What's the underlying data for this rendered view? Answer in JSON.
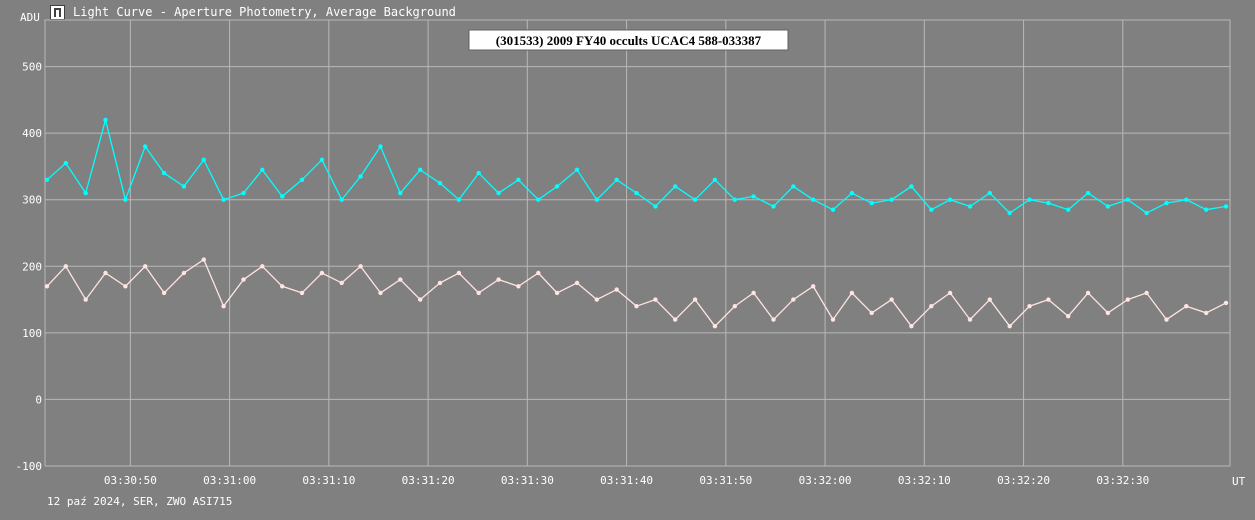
{
  "window": {
    "title": "Light Curve - Aperture Photometry, Average Background",
    "icon": "light-curve-app-icon"
  },
  "footer": {
    "text": "12 paź 2024, SER, ZWO ASI715"
  },
  "colors": {
    "background": "#808080",
    "grid": "#b8b8b8",
    "target": "#00ffff",
    "background_series": "#ffe4e1",
    "text": "#ffffff"
  },
  "chart_data": {
    "type": "line",
    "title": "(301533) 2009 FY40 occults UCAC4 588-033387",
    "ylabel": "ADU",
    "xlabel": "UT",
    "ylim": [
      -100,
      570
    ],
    "xlim": [
      "03:30:41.4",
      "03:32:40.8"
    ],
    "y_ticks": [
      -100,
      0,
      100,
      200,
      300,
      400,
      500
    ],
    "x_ticks": [
      "03:30:50",
      "03:31:00",
      "03:31:10",
      "03:31:20",
      "03:31:30",
      "03:31:40",
      "03:31:50",
      "03:32:00",
      "03:32:10",
      "03:32:20",
      "03:32:30"
    ],
    "grid": true,
    "legend": "none",
    "series": [
      {
        "color": "#00ffff",
        "x": [
          "03:30:41.6",
          "03:30:43.5",
          "03:30:45.5",
          "03:30:47.5",
          "03:30:49.5",
          "03:30:51.5",
          "03:30:53.4",
          "03:30:55.4",
          "03:30:57.4",
          "03:30:59.4",
          "03:31:01.4",
          "03:31:03.3",
          "03:31:05.3",
          "03:31:07.3",
          "03:31:09.3",
          "03:31:11.3",
          "03:31:13.2",
          "03:31:15.2",
          "03:31:17.2",
          "03:31:19.2",
          "03:31:21.2",
          "03:31:23.1",
          "03:31:25.1",
          "03:31:27.1",
          "03:31:29.1",
          "03:31:31.1",
          "03:31:33.0",
          "03:31:35.0",
          "03:31:37.0",
          "03:31:39.0",
          "03:31:41.0",
          "03:31:42.9",
          "03:31:44.9",
          "03:31:46.9",
          "03:31:48.9",
          "03:31:50.9",
          "03:31:52.8",
          "03:31:54.8",
          "03:31:56.8",
          "03:31:58.8",
          "03:32:00.8",
          "03:32:02.7",
          "03:32:04.7",
          "03:32:06.7",
          "03:32:08.7",
          "03:32:10.7",
          "03:32:12.6",
          "03:32:14.6",
          "03:32:16.6",
          "03:32:18.6",
          "03:32:20.6",
          "03:32:22.5",
          "03:32:24.5",
          "03:32:26.5",
          "03:32:28.5",
          "03:32:30.5",
          "03:32:32.4",
          "03:32:34.4",
          "03:32:36.4",
          "03:32:38.4",
          "03:32:40.4"
        ],
        "values": [
          330,
          355,
          310,
          420,
          300,
          380,
          340,
          320,
          360,
          300,
          310,
          345,
          305,
          330,
          360,
          300,
          335,
          380,
          310,
          345,
          325,
          300,
          340,
          310,
          330,
          300,
          320,
          345,
          300,
          330,
          310,
          290,
          320,
          300,
          330,
          300,
          305,
          290,
          320,
          300,
          285,
          310,
          295,
          300,
          320,
          285,
          300,
          290,
          310,
          280,
          300,
          295,
          285,
          310,
          290,
          300,
          280,
          295,
          300,
          285,
          290
        ]
      },
      {
        "color": "#ffe4e1",
        "x": [
          "03:30:41.6",
          "03:30:43.5",
          "03:30:45.5",
          "03:30:47.5",
          "03:30:49.5",
          "03:30:51.5",
          "03:30:53.4",
          "03:30:55.4",
          "03:30:57.4",
          "03:30:59.4",
          "03:31:01.4",
          "03:31:03.3",
          "03:31:05.3",
          "03:31:07.3",
          "03:31:09.3",
          "03:31:11.3",
          "03:31:13.2",
          "03:31:15.2",
          "03:31:17.2",
          "03:31:19.2",
          "03:31:21.2",
          "03:31:23.1",
          "03:31:25.1",
          "03:31:27.1",
          "03:31:29.1",
          "03:31:31.1",
          "03:31:33.0",
          "03:31:35.0",
          "03:31:37.0",
          "03:31:39.0",
          "03:31:41.0",
          "03:31:42.9",
          "03:31:44.9",
          "03:31:46.9",
          "03:31:48.9",
          "03:31:50.9",
          "03:31:52.8",
          "03:31:54.8",
          "03:31:56.8",
          "03:31:58.8",
          "03:32:00.8",
          "03:32:02.7",
          "03:32:04.7",
          "03:32:06.7",
          "03:32:08.7",
          "03:32:10.7",
          "03:32:12.6",
          "03:32:14.6",
          "03:32:16.6",
          "03:32:18.6",
          "03:32:20.6",
          "03:32:22.5",
          "03:32:24.5",
          "03:32:26.5",
          "03:32:28.5",
          "03:32:30.5",
          "03:32:32.4",
          "03:32:34.4",
          "03:32:36.4",
          "03:32:38.4",
          "03:32:40.4"
        ],
        "values": [
          170,
          200,
          150,
          190,
          170,
          200,
          160,
          190,
          210,
          140,
          180,
          200,
          170,
          160,
          190,
          175,
          200,
          160,
          180,
          150,
          175,
          190,
          160,
          180,
          170,
          190,
          160,
          175,
          150,
          165,
          140,
          150,
          120,
          150,
          110,
          140,
          160,
          120,
          150,
          170,
          120,
          160,
          130,
          150,
          110,
          140,
          160,
          120,
          150,
          110,
          140,
          150,
          125,
          160,
          130,
          150,
          160,
          120,
          140,
          130,
          145
        ]
      }
    ]
  }
}
